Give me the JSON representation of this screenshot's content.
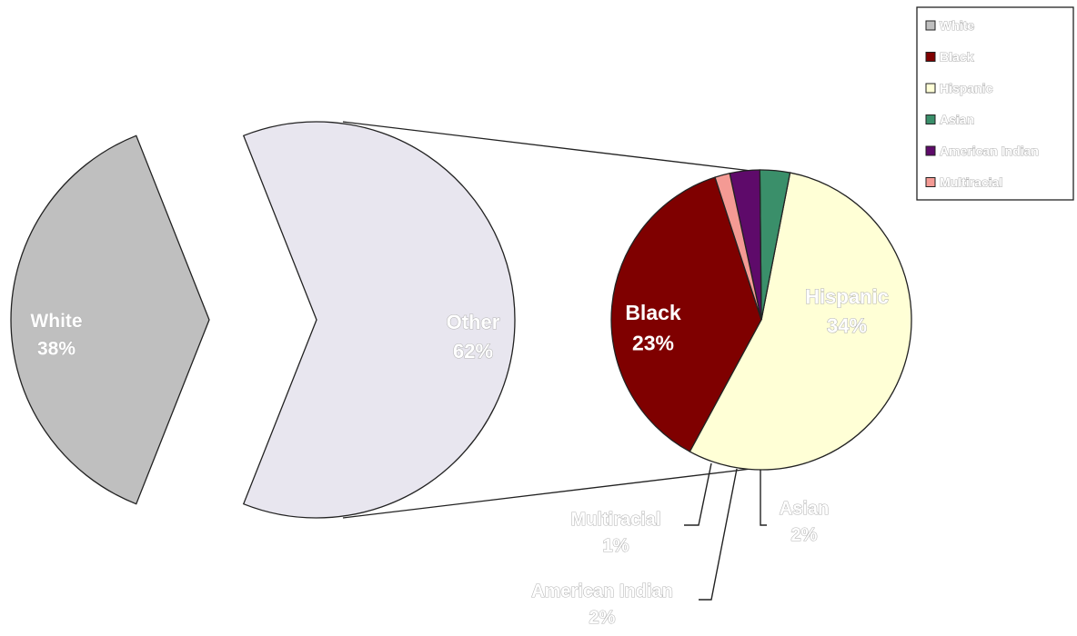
{
  "chart_data": {
    "type": "pie",
    "subtype": "pie-of-pie",
    "primary": {
      "slices": [
        {
          "label": "White",
          "value": 38,
          "value_label": "38%",
          "color": "#bfbfbf"
        },
        {
          "label": "Other",
          "value": 62,
          "value_label": "62%",
          "color": "#e8e6ef"
        }
      ]
    },
    "secondary": {
      "breakdown_of": "Other",
      "slices": [
        {
          "label": "Black",
          "value": 23,
          "value_label": "23%",
          "color": "#7f0000"
        },
        {
          "label": "Hispanic",
          "value": 34,
          "value_label": "34%",
          "color": "#ffffd6"
        },
        {
          "label": "Asian",
          "value": 2,
          "value_label": "2%",
          "color": "#3a8f6a"
        },
        {
          "label": "American Indian",
          "value": 2,
          "value_label": "2%",
          "color": "#5e0a6a"
        },
        {
          "label": "Multiracial",
          "value": 1,
          "value_label": "1%",
          "color": "#f49a94"
        }
      ]
    },
    "legend": {
      "position": "top-right",
      "items": [
        {
          "label": "White",
          "color": "#bfbfbf"
        },
        {
          "label": "Black",
          "color": "#7f0000"
        },
        {
          "label": "Hispanic",
          "color": "#ffffd6"
        },
        {
          "label": "Asian",
          "color": "#3a8f6a"
        },
        {
          "label": "American Indian",
          "color": "#5e0a6a"
        },
        {
          "label": "Multiracial",
          "color": "#f49a94"
        }
      ]
    }
  }
}
